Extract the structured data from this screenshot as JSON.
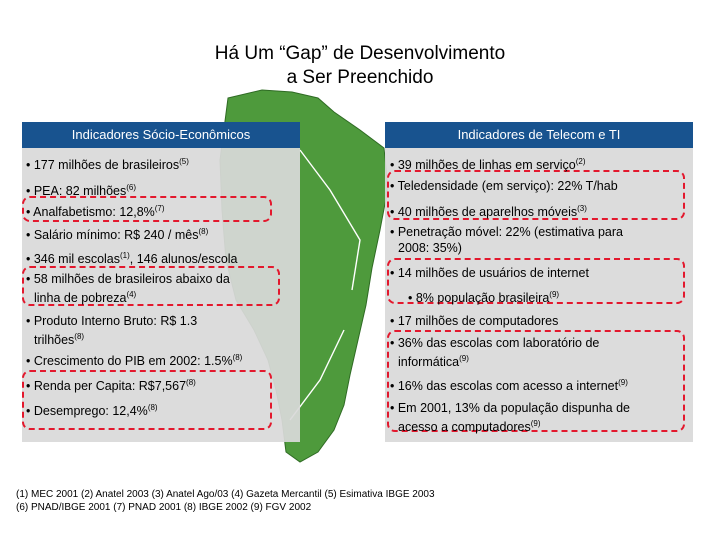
{
  "title_line1": "Há Um “Gap” de Desenvolvimento",
  "title_line2": "a Ser Preenchido",
  "left_header": "Indicadores Sócio-Econômicos",
  "right_header": "Indicadores de Telecom e TI",
  "left_items": [
    {
      "text": "• 177 milhões de brasileiros",
      "sup": "(5)"
    },
    {
      "text": "• PEA: 82 milhões",
      "sup": "(6)"
    },
    {
      "text": "• Analfabetismo: 12,8%",
      "sup": "(7)"
    },
    {
      "text": "• Salário mínimo: R$ 240 / mês",
      "sup": "(8)"
    },
    {
      "text": "• 346 mil escolas",
      "sup": "(1)",
      "after": ", 146 alunos/escola"
    },
    {
      "text": "• 58 milhões de brasileiros abaixo da",
      "line2": "linha de pobreza",
      "sup": "(4)"
    },
    {
      "text": "• Produto Interno Bruto: R$ 1.3",
      "line2": "trilhões",
      "sup": "(8)"
    },
    {
      "text": "• Crescimento do PIB em 2002: 1.5%",
      "sup": "(8)"
    },
    {
      "text": "• Renda per Capita: R$7,567",
      "sup": "(8)"
    },
    {
      "text": "• Desemprego: 12,4%",
      "sup": "(8)"
    }
  ],
  "right_items": [
    {
      "text": "• 39 milhões de linhas em serviço",
      "sup": "(2)"
    },
    {
      "text": "• Teledensidade (em serviço): 22% T/hab"
    },
    {
      "text": "• 40 milhões de aparelhos móveis",
      "sup": "(3)"
    },
    {
      "text": "• Penetração móvel: 22% (estimativa para",
      "line2": "2008: 35%)"
    },
    {
      "text": "• 14 milhões de usuários de internet"
    },
    {
      "text": "• 8% população brasileira",
      "sup": "(9)"
    },
    {
      "text": "• 17 milhões de computadores"
    },
    {
      "text": "• 36% das escolas com laboratório de",
      "line2": "informática",
      "sup": "(9)"
    },
    {
      "text": "• 16% das escolas com acesso a internet",
      "sup": "(9)"
    },
    {
      "text": "• Em 2001, 13% da população dispunha de",
      "line2": "acesso a computadores",
      "sup": "(9)"
    }
  ],
  "footnote_line1": "(1)      MEC 2001 (2) Anatel 2003   (3) Anatel Ago/03  (4) Gazeta Mercantil  (5) Esimativa IBGE 2003",
  "footnote_line2": "(6) PNAD/IBGE 2001  (7) PNAD 2001   (8) IBGE 2002      (9) FGV 2002",
  "colors": {
    "header": "#18538f",
    "panel": "#d9d9d9",
    "map": "#4e9a3c",
    "highlight": "#e3182d"
  }
}
